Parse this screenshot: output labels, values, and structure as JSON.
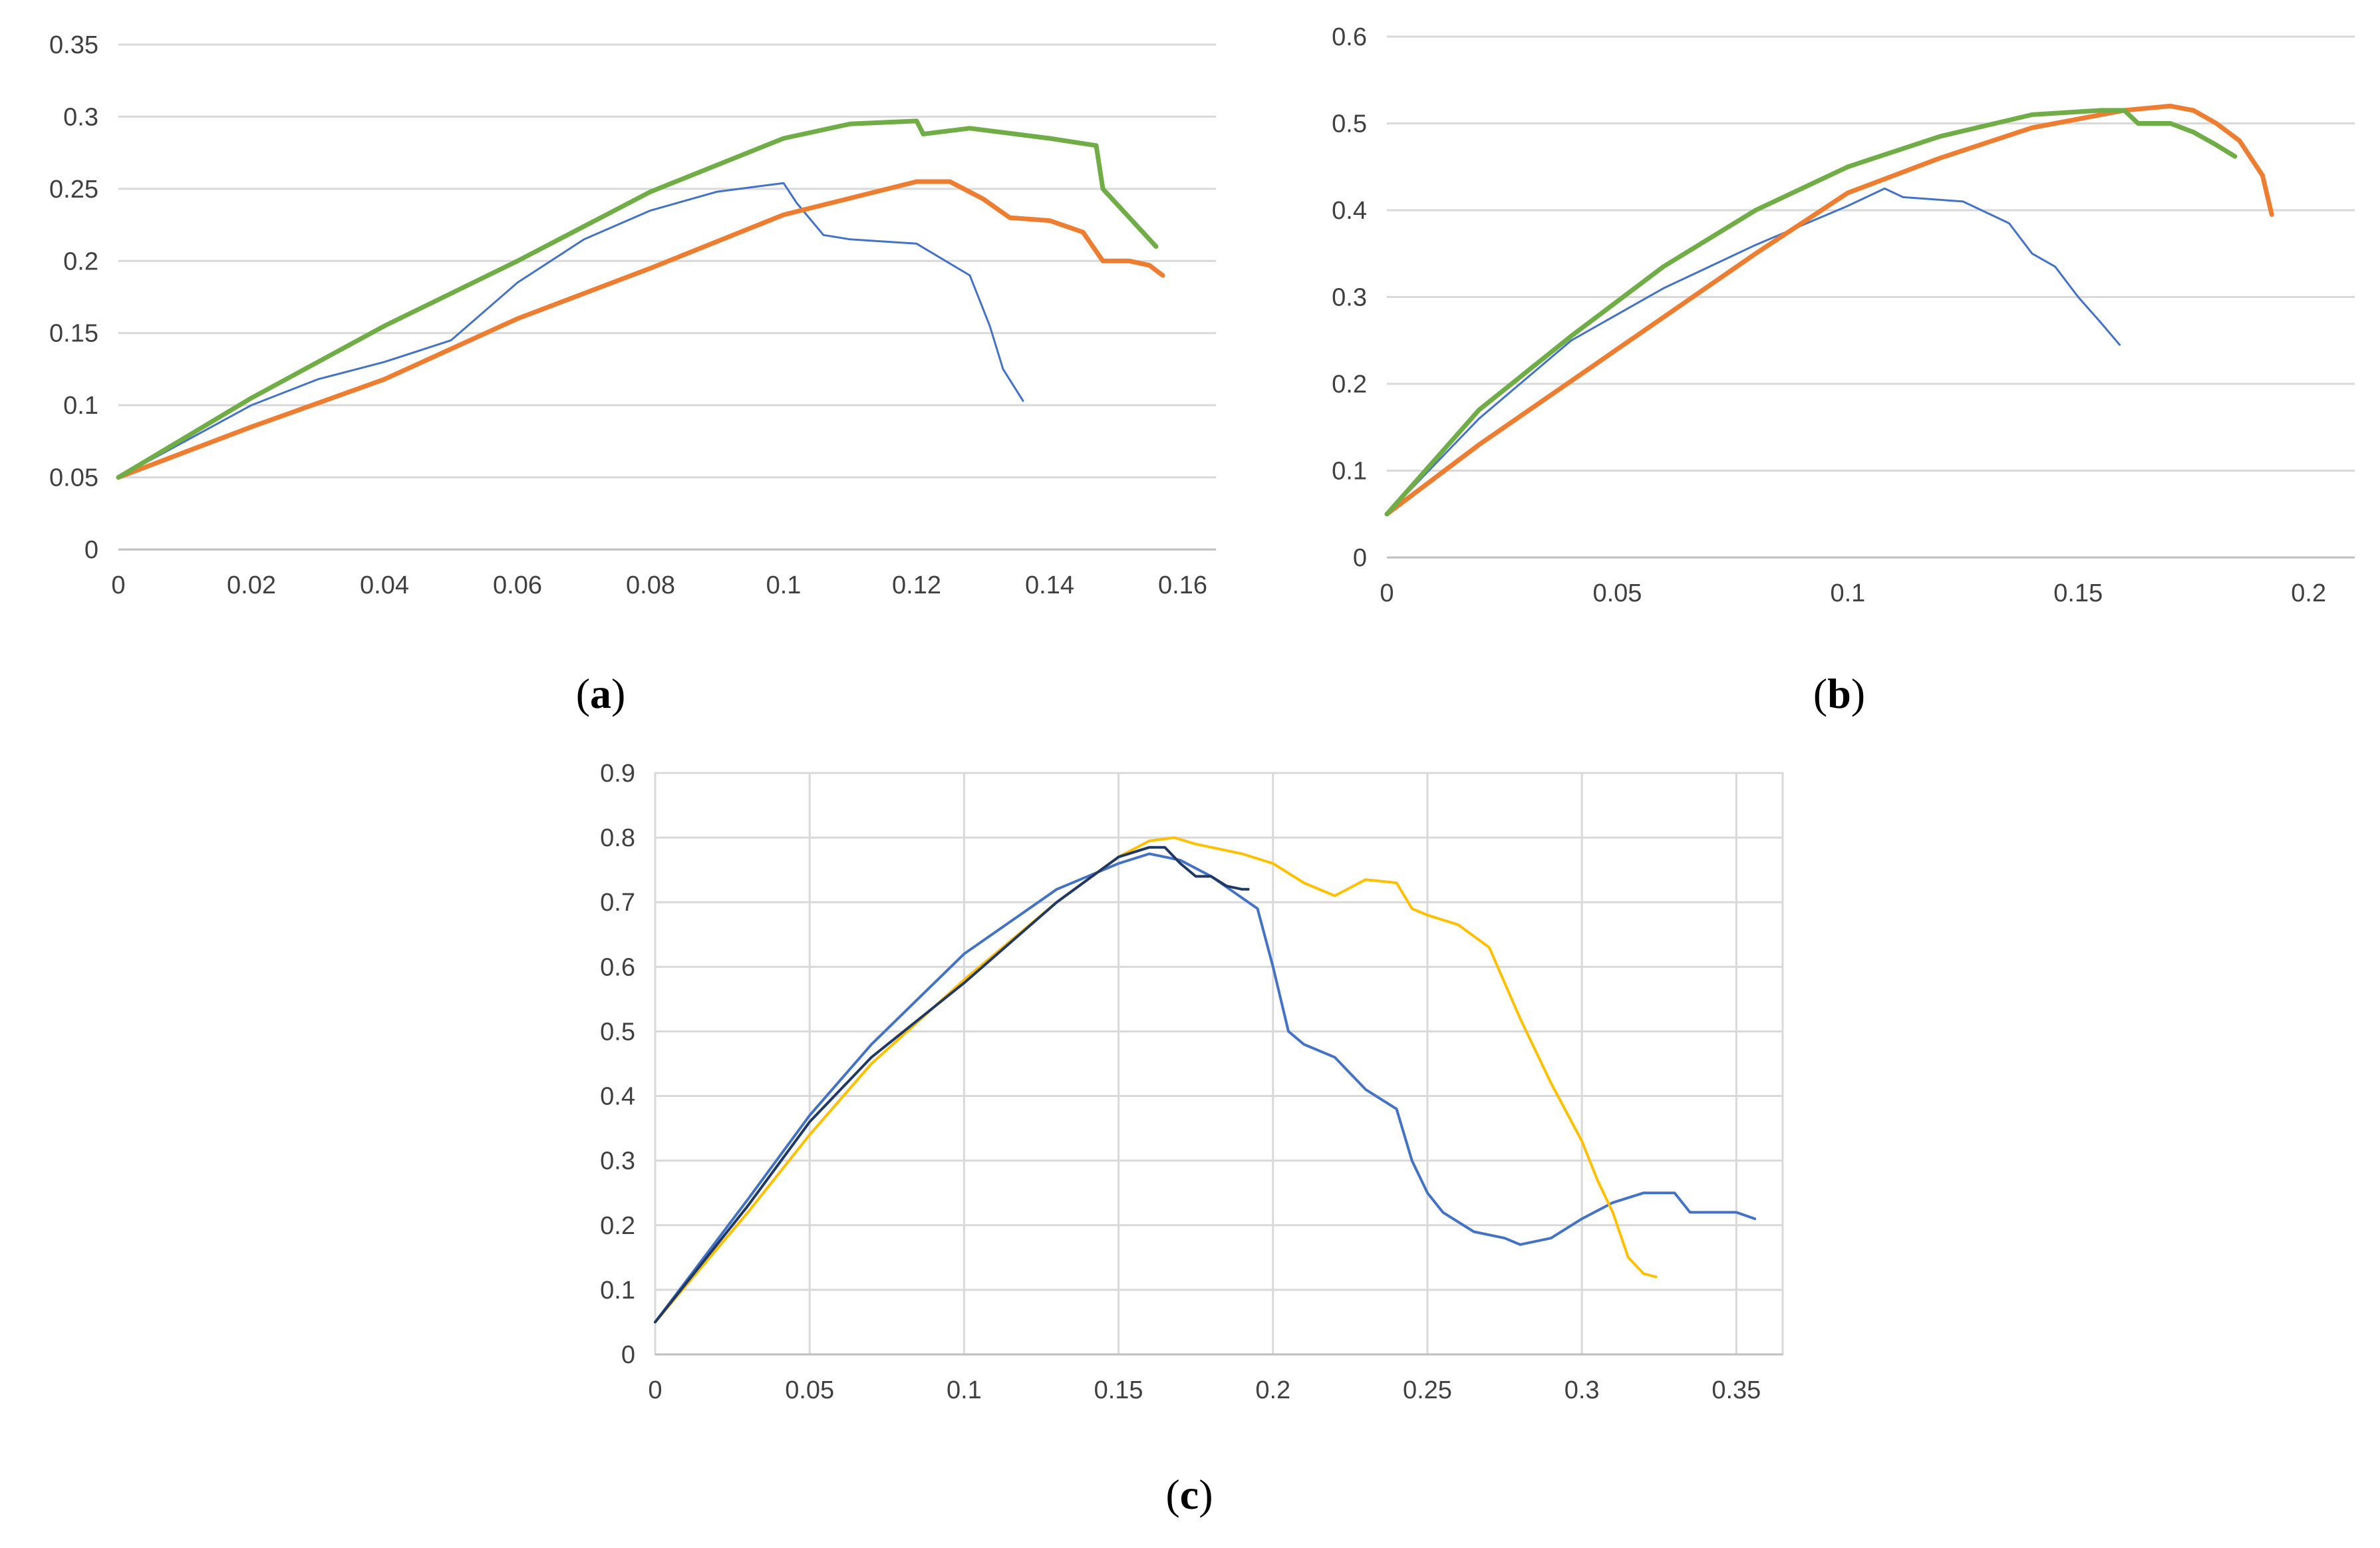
{
  "figure": {
    "caption_a": "a",
    "caption_b": "b",
    "caption_c": "c"
  },
  "chart_data": [
    {
      "id": "a",
      "type": "line",
      "title": "",
      "xlabel": "",
      "ylabel": "",
      "xlim": [
        0,
        0.165
      ],
      "ylim": [
        0,
        0.35
      ],
      "xticks": [
        "0",
        "0.02",
        "0.04",
        "0.06",
        "0.08",
        "0.1",
        "0.12",
        "0.14",
        "0.16"
      ],
      "yticks": [
        "0",
        "0.05",
        "0.1",
        "0.15",
        "0.2",
        "0.25",
        "0.3",
        "0.35"
      ],
      "grid": "horizontal",
      "series": [
        {
          "name": "blue",
          "color": "#4472C4",
          "width": "thin",
          "x": [
            0,
            0.01,
            0.02,
            0.03,
            0.04,
            0.05,
            0.06,
            0.07,
            0.08,
            0.09,
            0.1,
            0.102,
            0.106,
            0.11,
            0.12,
            0.128,
            0.131,
            0.133,
            0.136
          ],
          "y": [
            0.05,
            0.075,
            0.1,
            0.118,
            0.13,
            0.145,
            0.185,
            0.215,
            0.235,
            0.248,
            0.254,
            0.24,
            0.218,
            0.215,
            0.212,
            0.19,
            0.155,
            0.125,
            0.103
          ]
        },
        {
          "name": "orange",
          "color": "#ED7D31",
          "width": "thick",
          "x": [
            0,
            0.02,
            0.04,
            0.06,
            0.08,
            0.1,
            0.12,
            0.125,
            0.13,
            0.134,
            0.14,
            0.145,
            0.148,
            0.152,
            0.155,
            0.157
          ],
          "y": [
            0.05,
            0.085,
            0.118,
            0.16,
            0.195,
            0.232,
            0.255,
            0.255,
            0.243,
            0.23,
            0.228,
            0.22,
            0.2,
            0.2,
            0.197,
            0.19
          ]
        },
        {
          "name": "green",
          "color": "#70AD47",
          "width": "thick",
          "x": [
            0,
            0.02,
            0.04,
            0.06,
            0.08,
            0.1,
            0.11,
            0.12,
            0.121,
            0.128,
            0.14,
            0.147,
            0.148,
            0.152,
            0.156
          ],
          "y": [
            0.05,
            0.105,
            0.155,
            0.2,
            0.248,
            0.285,
            0.295,
            0.297,
            0.288,
            0.292,
            0.285,
            0.28,
            0.25,
            0.23,
            0.21
          ]
        }
      ]
    },
    {
      "id": "b",
      "type": "line",
      "title": "",
      "xlabel": "",
      "ylabel": "",
      "xlim": [
        0,
        0.21
      ],
      "ylim": [
        0,
        0.6
      ],
      "xticks": [
        "0",
        "0.05",
        "0.1",
        "0.15",
        "0.2"
      ],
      "yticks": [
        "0",
        "0.1",
        "0.2",
        "0.3",
        "0.4",
        "0.5",
        "0.6"
      ],
      "grid": "horizontal",
      "series": [
        {
          "name": "blue",
          "color": "#4472C4",
          "width": "thin",
          "x": [
            0,
            0.02,
            0.04,
            0.06,
            0.08,
            0.1,
            0.108,
            0.112,
            0.125,
            0.135,
            0.14,
            0.145,
            0.15,
            0.155,
            0.159
          ],
          "y": [
            0.05,
            0.16,
            0.25,
            0.31,
            0.36,
            0.405,
            0.425,
            0.415,
            0.41,
            0.385,
            0.35,
            0.335,
            0.3,
            0.27,
            0.245
          ]
        },
        {
          "name": "orange",
          "color": "#ED7D31",
          "width": "thick",
          "x": [
            0,
            0.02,
            0.05,
            0.08,
            0.1,
            0.12,
            0.14,
            0.16,
            0.17,
            0.175,
            0.18,
            0.185,
            0.19,
            0.192
          ],
          "y": [
            0.05,
            0.13,
            0.24,
            0.35,
            0.42,
            0.46,
            0.495,
            0.515,
            0.52,
            0.515,
            0.5,
            0.48,
            0.44,
            0.395
          ]
        },
        {
          "name": "green",
          "color": "#70AD47",
          "width": "thick",
          "x": [
            0,
            0.02,
            0.04,
            0.06,
            0.08,
            0.1,
            0.12,
            0.14,
            0.155,
            0.16,
            0.163,
            0.17,
            0.175,
            0.18,
            0.184
          ],
          "y": [
            0.05,
            0.17,
            0.255,
            0.335,
            0.4,
            0.45,
            0.485,
            0.51,
            0.515,
            0.515,
            0.5,
            0.5,
            0.49,
            0.475,
            0.462
          ]
        }
      ]
    },
    {
      "id": "c",
      "type": "line",
      "title": "",
      "xlabel": "",
      "ylabel": "",
      "xlim": [
        0,
        0.365
      ],
      "ylim": [
        0,
        0.9
      ],
      "xticks": [
        "0",
        "0.05",
        "0.1",
        "0.15",
        "0.2",
        "0.25",
        "0.3",
        "0.35"
      ],
      "yticks": [
        "0",
        "0.1",
        "0.2",
        "0.3",
        "0.4",
        "0.5",
        "0.6",
        "0.7",
        "0.8",
        "0.9"
      ],
      "grid": "both",
      "series": [
        {
          "name": "blue",
          "color": "#4472C4",
          "width": "medium",
          "x": [
            0,
            0.03,
            0.05,
            0.07,
            0.1,
            0.13,
            0.15,
            0.16,
            0.17,
            0.18,
            0.195,
            0.2,
            0.205,
            0.21,
            0.22,
            0.23,
            0.24,
            0.245,
            0.25,
            0.255,
            0.265,
            0.275,
            0.28,
            0.29,
            0.3,
            0.31,
            0.32,
            0.33,
            0.335,
            0.345,
            0.35,
            0.356
          ],
          "y": [
            0.05,
            0.24,
            0.37,
            0.48,
            0.62,
            0.72,
            0.76,
            0.775,
            0.765,
            0.74,
            0.69,
            0.6,
            0.5,
            0.48,
            0.46,
            0.41,
            0.38,
            0.3,
            0.25,
            0.22,
            0.19,
            0.18,
            0.17,
            0.18,
            0.21,
            0.235,
            0.25,
            0.25,
            0.22,
            0.22,
            0.22,
            0.21
          ]
        },
        {
          "name": "yellow",
          "color": "#FFC000",
          "width": "medium",
          "x": [
            0,
            0.03,
            0.05,
            0.07,
            0.1,
            0.13,
            0.15,
            0.16,
            0.168,
            0.175,
            0.19,
            0.2,
            0.21,
            0.22,
            0.23,
            0.24,
            0.245,
            0.25,
            0.26,
            0.27,
            0.28,
            0.29,
            0.3,
            0.305,
            0.31,
            0.315,
            0.32,
            0.324
          ],
          "y": [
            0.05,
            0.22,
            0.34,
            0.45,
            0.58,
            0.7,
            0.77,
            0.795,
            0.8,
            0.79,
            0.775,
            0.76,
            0.73,
            0.71,
            0.735,
            0.73,
            0.69,
            0.68,
            0.665,
            0.63,
            0.52,
            0.42,
            0.33,
            0.27,
            0.22,
            0.15,
            0.125,
            0.12
          ]
        },
        {
          "name": "navy",
          "color": "#203864",
          "width": "medium",
          "x": [
            0,
            0.03,
            0.05,
            0.07,
            0.1,
            0.13,
            0.15,
            0.16,
            0.165,
            0.17,
            0.175,
            0.18,
            0.185,
            0.19,
            0.192
          ],
          "y": [
            0.05,
            0.23,
            0.36,
            0.46,
            0.575,
            0.7,
            0.77,
            0.785,
            0.785,
            0.76,
            0.74,
            0.74,
            0.725,
            0.72,
            0.72
          ]
        }
      ]
    }
  ]
}
